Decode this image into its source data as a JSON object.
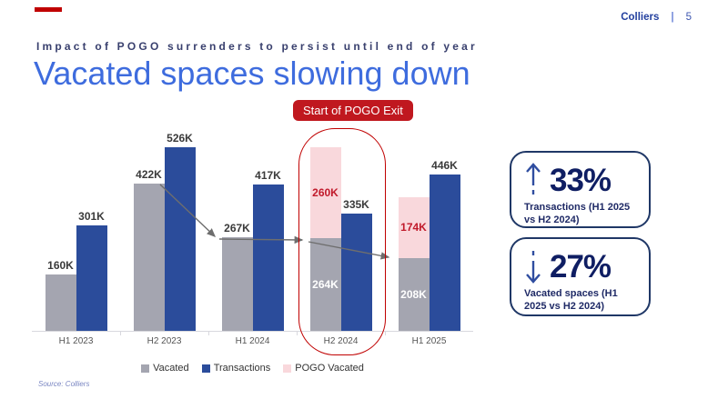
{
  "header": {
    "brand": "Colliers",
    "separator": "|",
    "page_number": "5"
  },
  "subtitle": "Impact of POGO surrenders to persist until end of year",
  "title": "Vacated spaces slowing down",
  "badge": "Start of POGO Exit",
  "chart_data": {
    "type": "bar",
    "categories": [
      "H1 2023",
      "H2 2023",
      "H1 2024",
      "H2 2024",
      "H1 2025"
    ],
    "series": [
      {
        "name": "Vacated",
        "values": [
          160,
          422,
          267,
          264,
          208
        ],
        "color": "#A4A5B0"
      },
      {
        "name": "Transactions",
        "values": [
          301,
          526,
          417,
          335,
          446
        ],
        "color": "#2B4C9B"
      },
      {
        "name": "POGO Vacated",
        "values": [
          0,
          0,
          0,
          260,
          174
        ],
        "color": "#F9D8DC",
        "stacked_on": "Vacated"
      }
    ],
    "value_suffix": "K",
    "ylim": [
      0,
      582
    ],
    "grid": false,
    "legend_position": "bottom",
    "annotations": {
      "callout": "Start of POGO Exit",
      "highlighted_category": "H2 2024",
      "trend_arrows": "connect tops of Vacated bars: 422K to 267K, 267K to 264K, 264K to 208K"
    },
    "label_colors": {
      "above": "#3A3A3A",
      "inside_vacated": "#FFFFFF",
      "inside_pogo": "#C11A2B"
    }
  },
  "stats": [
    {
      "direction": "up",
      "value": "33%",
      "label": "Transactions (H1 2025 vs H2 2024)"
    },
    {
      "direction": "down",
      "value": "27%",
      "label": "Vacated spaces (H1 2025 vs H2 2024)"
    }
  ],
  "source": "Source: Colliers",
  "colors": {
    "accent_red": "#C00000",
    "badge_red": "#C0181F",
    "title_blue": "#3E6CDE",
    "navy": "#1F3766",
    "arrow_gray": "#6E6E6E"
  }
}
